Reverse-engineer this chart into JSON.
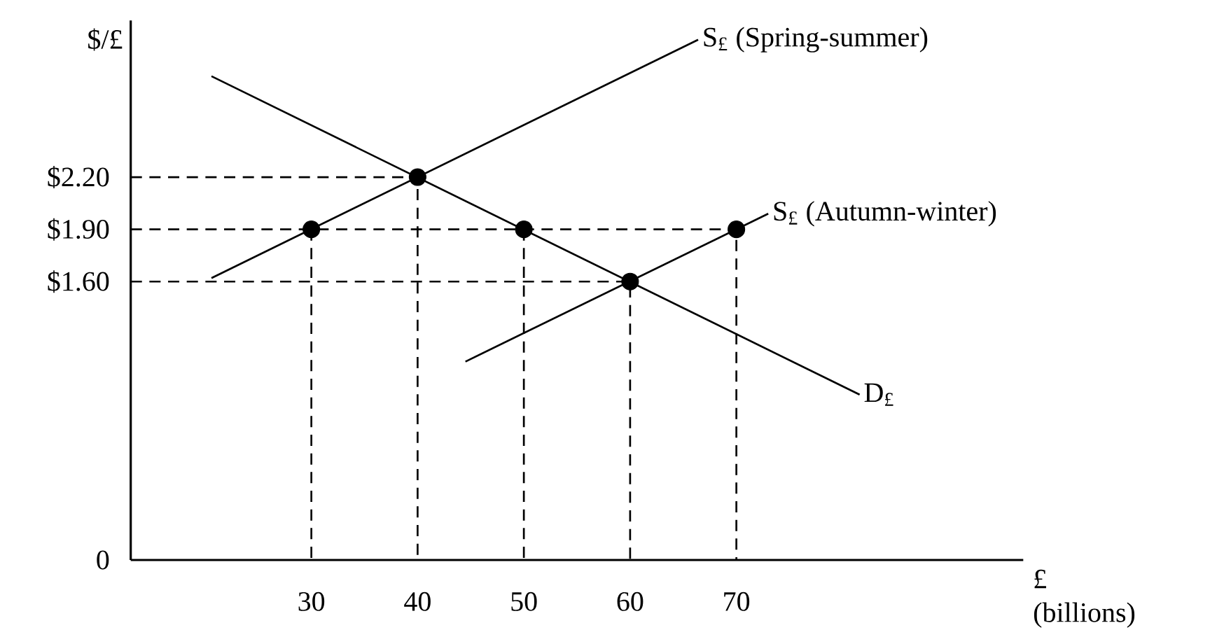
{
  "chart_data": {
    "type": "line",
    "xlabel": "£ (billions)",
    "ylabel": "$/£",
    "xlim": [
      13,
      97
    ],
    "ylim": [
      0,
      3.1
    ],
    "xticks": [
      30,
      40,
      50,
      60,
      70
    ],
    "yticks": [
      0,
      {
        "value": 1.6,
        "label": "$1.60"
      },
      {
        "value": 1.9,
        "label": "$1.90"
      },
      {
        "value": 2.2,
        "label": "$2.20"
      }
    ],
    "series": [
      {
        "color": "#000000",
        "line_style": "solid",
        "marker": "none",
        "x": [
          20.6,
          81.6
        ],
        "values": [
          2.78,
          0.95
        ]
      },
      {
        "color": "#000000",
        "line_style": "solid",
        "marker": "none",
        "x": [
          20.6,
          66.4
        ],
        "values": [
          1.62,
          2.99
        ]
      },
      {
        "color": "#000000",
        "line_style": "solid",
        "marker": "none",
        "x": [
          44.5,
          73
        ],
        "values": [
          1.14,
          1.99
        ]
      },
      {
        "color": "#000000",
        "line_style": "dashed",
        "marker": "none",
        "x": [
          13,
          40,
          40
        ],
        "values": [
          2.2,
          2.2,
          0
        ]
      },
      {
        "color": "#000000",
        "line_style": "dashed",
        "marker": "none",
        "x": [
          13,
          70,
          70
        ],
        "values": [
          1.9,
          1.9,
          0
        ]
      },
      {
        "color": "#000000",
        "line_style": "dashed",
        "marker": "none",
        "x": [
          13,
          60,
          60
        ],
        "values": [
          1.6,
          1.6,
          0
        ]
      },
      {
        "color": "#000000",
        "line_style": "dashed",
        "marker": "none",
        "x": [
          30,
          30
        ],
        "values": [
          1.9,
          0
        ]
      },
      {
        "color": "#000000",
        "line_style": "dashed",
        "marker": "none",
        "x": [
          50,
          50
        ],
        "values": [
          1.9,
          0
        ]
      },
      {
        "type": "scatter",
        "color": "#000000",
        "marker": "circle",
        "x": [
          30,
          40,
          50,
          60,
          70
        ],
        "values": [
          1.9,
          2.2,
          1.9,
          1.6,
          1.9
        ]
      }
    ],
    "annotations": [
      {
        "text": "S$_{£}$ (Spring-summer)",
        "x": 66.4,
        "y": 2.99
      },
      {
        "text": "S$_{£}$ (Autumn-winter)",
        "x": 73,
        "y": 1.99
      },
      {
        "text": "D$_{£}$",
        "x": 81.6,
        "y": 0.95
      }
    ]
  }
}
